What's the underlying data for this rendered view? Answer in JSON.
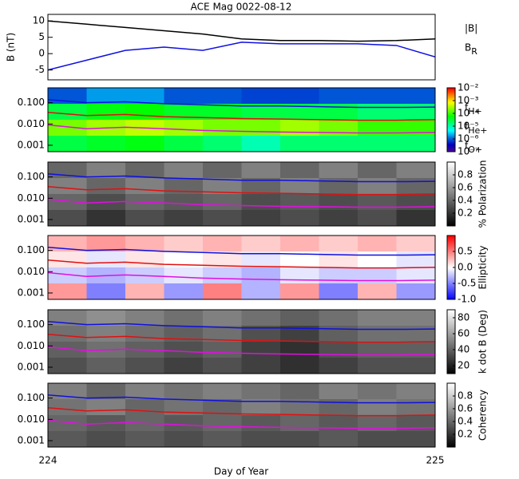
{
  "chart_data": [
    {
      "type": "line",
      "title": "ACE Mag 0022-08-12",
      "y_label": "B (nT)",
      "xlim": [
        224,
        225
      ],
      "xticks": [
        224,
        225
      ],
      "ylim": [
        -8,
        12
      ],
      "yticks": [
        -5,
        0,
        5,
        10
      ],
      "x": [
        224,
        224.1,
        224.2,
        224.3,
        224.4,
        224.5,
        224.6,
        224.7,
        224.8,
        224.9,
        225
      ],
      "series": [
        {
          "name": "|B|",
          "color": "#000000",
          "values": [
            10,
            9,
            8,
            7,
            6,
            4.5,
            4,
            4,
            3.8,
            4,
            4.5
          ]
        },
        {
          "name": "BR",
          "color": "#1010e0",
          "values": [
            -5,
            -2,
            1,
            2,
            1,
            3.5,
            3,
            3,
            3,
            2.5,
            -1
          ]
        }
      ]
    },
    {
      "type": "heatmap",
      "log_y": true,
      "colormap": "rainbow",
      "z_log": true,
      "xlim": [
        224,
        225
      ],
      "xticks": [
        224,
        225
      ],
      "ylim": [
        0.0005,
        0.5
      ],
      "yticks": [
        {
          "value": 0.001,
          "label": "0.001"
        },
        {
          "value": 0.01,
          "label": "0.010"
        },
        {
          "value": 0.1,
          "label": "0.100"
        }
      ],
      "zlim": [
        1e-07,
        0.01
      ],
      "zticks": [
        {
          "value": 0.01,
          "label": "10⁻²"
        },
        {
          "value": 0.001,
          "label": "10⁻³"
        },
        {
          "value": 0.0001,
          "label": "10⁻⁴"
        },
        {
          "value": 1e-05,
          "label": "10⁻⁵"
        },
        {
          "value": 1e-06,
          "label": "10⁻⁶"
        },
        {
          "value": 1e-07,
          "label": "10⁻⁷"
        }
      ],
      "z": [
        [
          1e-06,
          2e-06,
          2e-06,
          1e-06,
          1e-06,
          8e-07,
          8e-07,
          1e-06,
          1e-06,
          1e-06
        ],
        [
          3e-05,
          5e-05,
          6e-05,
          4e-05,
          4e-05,
          3e-05,
          3e-05,
          3e-05,
          2e-05,
          2e-05
        ],
        [
          0.0002,
          0.0003,
          0.0004,
          0.0003,
          0.0002,
          0.0002,
          0.0003,
          0.0002,
          0.0001,
          0.0001
        ],
        [
          3e-05,
          4e-05,
          5e-05,
          3e-05,
          2e-05,
          1e-05,
          2e-05,
          2e-05,
          2e-05,
          2e-05
        ]
      ],
      "x": [
        224,
        224.1,
        224.2,
        224.3,
        224.4,
        224.5,
        224.6,
        224.7,
        224.8,
        224.9,
        225
      ],
      "series": [
        {
          "name": "fH+",
          "color": "#1010e0",
          "values": [
            0.14,
            0.1,
            0.11,
            0.09,
            0.08,
            0.07,
            0.07,
            0.065,
            0.06,
            0.06,
            0.062
          ]
        },
        {
          "name": "fHe+",
          "color": "#e01010",
          "values": [
            0.035,
            0.025,
            0.028,
            0.022,
            0.02,
            0.018,
            0.017,
            0.016,
            0.015,
            0.015,
            0.016
          ]
        },
        {
          "name": "fO+",
          "color": "#e010e0",
          "values": [
            0.009,
            0.006,
            0.007,
            0.006,
            0.005,
            0.0045,
            0.0042,
            0.004,
            0.0038,
            0.0038,
            0.004
          ]
        }
      ]
    },
    {
      "type": "heatmap",
      "log_y": true,
      "colormap": "gray",
      "z_label": "% Polarization",
      "xlim": [
        224,
        225
      ],
      "xticks": [
        224,
        225
      ],
      "ylim": [
        0.0005,
        0.5
      ],
      "yticks": [
        {
          "value": 0.001,
          "label": "0.001"
        },
        {
          "value": 0.01,
          "label": "0.010"
        },
        {
          "value": 0.1,
          "label": "0.100"
        }
      ],
      "zlim": [
        0,
        1
      ],
      "zticks": [
        0.2,
        0.4,
        0.6,
        0.8
      ],
      "z": [
        [
          0.4,
          0.5,
          0.4,
          0.5,
          0.4,
          0.5,
          0.4,
          0.5,
          0.4,
          0.5
        ],
        [
          0.5,
          0.4,
          0.5,
          0.4,
          0.5,
          0.4,
          0.5,
          0.4,
          0.5,
          0.4
        ],
        [
          0.4,
          0.3,
          0.4,
          0.35,
          0.4,
          0.3,
          0.35,
          0.3,
          0.35,
          0.3
        ],
        [
          0.3,
          0.2,
          0.3,
          0.25,
          0.3,
          0.25,
          0.3,
          0.25,
          0.3,
          0.2
        ]
      ],
      "x": [
        224,
        224.1,
        224.2,
        224.3,
        224.4,
        224.5,
        224.6,
        224.7,
        224.8,
        224.9,
        225
      ],
      "series": [
        {
          "color": "#1010e0",
          "values": [
            0.14,
            0.1,
            0.11,
            0.09,
            0.08,
            0.07,
            0.07,
            0.065,
            0.06,
            0.06,
            0.062
          ]
        },
        {
          "color": "#e01010",
          "values": [
            0.035,
            0.025,
            0.028,
            0.022,
            0.02,
            0.018,
            0.017,
            0.016,
            0.015,
            0.015,
            0.016
          ]
        },
        {
          "color": "#e010e0",
          "values": [
            0.009,
            0.006,
            0.007,
            0.006,
            0.005,
            0.0045,
            0.0042,
            0.004,
            0.0038,
            0.0038,
            0.004
          ]
        }
      ]
    },
    {
      "type": "heatmap",
      "log_y": true,
      "colormap": "bwr",
      "z_label": "Ellipticity",
      "xlim": [
        224,
        225
      ],
      "xticks": [
        224,
        225
      ],
      "ylim": [
        0.0005,
        0.5
      ],
      "yticks": [
        {
          "value": 0.001,
          "label": "0.001"
        },
        {
          "value": 0.01,
          "label": "0.010"
        },
        {
          "value": 0.1,
          "label": "0.100"
        }
      ],
      "zlim": [
        -1,
        1
      ],
      "zticks": [
        {
          "value": -1,
          "label": "-1.0"
        },
        {
          "value": -0.5,
          "label": "-0.5"
        },
        {
          "value": 0,
          "label": "0.0"
        },
        {
          "value": 0.5,
          "label": "0.5"
        }
      ],
      "z": [
        [
          0.3,
          0.4,
          0.3,
          0.2,
          0.3,
          0.2,
          0.3,
          0.2,
          0.3,
          0.2
        ],
        [
          0.1,
          -0.1,
          0.1,
          0,
          0.1,
          -0.1,
          0,
          0.1,
          0,
          -0.1
        ],
        [
          -0.2,
          -0.3,
          -0.2,
          -0.1,
          -0.2,
          -0.3,
          -0.1,
          -0.2,
          -0.2,
          -0.1
        ],
        [
          0.4,
          -0.5,
          0.3,
          -0.4,
          0.5,
          -0.3,
          0.4,
          -0.5,
          0.3,
          -0.4
        ]
      ],
      "x": [
        224,
        224.1,
        224.2,
        224.3,
        224.4,
        224.5,
        224.6,
        224.7,
        224.8,
        224.9,
        225
      ],
      "series": [
        {
          "color": "#1010e0",
          "values": [
            0.14,
            0.1,
            0.11,
            0.09,
            0.08,
            0.07,
            0.07,
            0.065,
            0.06,
            0.06,
            0.062
          ]
        },
        {
          "color": "#e01010",
          "values": [
            0.035,
            0.025,
            0.028,
            0.022,
            0.02,
            0.018,
            0.017,
            0.016,
            0.015,
            0.015,
            0.016
          ]
        },
        {
          "color": "#e010e0",
          "values": [
            0.009,
            0.006,
            0.007,
            0.006,
            0.005,
            0.0045,
            0.0042,
            0.004,
            0.0038,
            0.0038,
            0.004
          ]
        }
      ]
    },
    {
      "type": "heatmap",
      "log_y": true,
      "colormap": "gray",
      "z_label": "k dot B (Deg)",
      "xlim": [
        224,
        225
      ],
      "xticks": [
        224,
        225
      ],
      "ylim": [
        0.0005,
        0.5
      ],
      "yticks": [
        {
          "value": 0.001,
          "label": "0.001"
        },
        {
          "value": 0.01,
          "label": "0.010"
        },
        {
          "value": 0.1,
          "label": "0.100"
        }
      ],
      "zlim": [
        10,
        90
      ],
      "zticks": [
        20,
        40,
        60,
        80
      ],
      "z": [
        [
          50,
          55,
          50,
          45,
          50,
          45,
          40,
          45,
          50,
          50
        ],
        [
          45,
          50,
          45,
          40,
          45,
          35,
          30,
          40,
          45,
          45
        ],
        [
          40,
          45,
          40,
          35,
          40,
          30,
          25,
          35,
          40,
          40
        ],
        [
          35,
          40,
          35,
          30,
          35,
          30,
          25,
          30,
          35,
          35
        ]
      ],
      "x": [
        224,
        224.1,
        224.2,
        224.3,
        224.4,
        224.5,
        224.6,
        224.7,
        224.8,
        224.9,
        225
      ],
      "series": [
        {
          "color": "#1010e0",
          "values": [
            0.14,
            0.1,
            0.11,
            0.09,
            0.08,
            0.07,
            0.07,
            0.065,
            0.06,
            0.06,
            0.062
          ]
        },
        {
          "color": "#e01010",
          "values": [
            0.035,
            0.025,
            0.028,
            0.022,
            0.02,
            0.018,
            0.017,
            0.016,
            0.015,
            0.015,
            0.016
          ]
        },
        {
          "color": "#e010e0",
          "values": [
            0.009,
            0.006,
            0.007,
            0.006,
            0.005,
            0.0045,
            0.0042,
            0.004,
            0.0038,
            0.0038,
            0.004
          ]
        }
      ]
    },
    {
      "type": "heatmap",
      "log_y": true,
      "colormap": "gray",
      "z_label": "Coherency",
      "x_label": "Day of Year",
      "xlim": [
        224,
        225
      ],
      "xticks": [
        224,
        225
      ],
      "ylim": [
        0.0005,
        0.5
      ],
      "yticks": [
        {
          "value": 0.001,
          "label": "0.001"
        },
        {
          "value": 0.01,
          "label": "0.010"
        },
        {
          "value": 0.1,
          "label": "0.100"
        }
      ],
      "zlim": [
        0,
        1
      ],
      "zticks": [
        0.2,
        0.4,
        0.6,
        0.8
      ],
      "z": [
        [
          0.5,
          0.4,
          0.5,
          0.45,
          0.5,
          0.45,
          0.4,
          0.5,
          0.45,
          0.5
        ],
        [
          0.45,
          0.5,
          0.4,
          0.45,
          0.4,
          0.5,
          0.45,
          0.4,
          0.5,
          0.45
        ],
        [
          0.4,
          0.35,
          0.4,
          0.35,
          0.4,
          0.35,
          0.4,
          0.35,
          0.4,
          0.35
        ],
        [
          0.35,
          0.3,
          0.35,
          0.3,
          0.35,
          0.3,
          0.3,
          0.35,
          0.3,
          0.3
        ]
      ],
      "x": [
        224,
        224.1,
        224.2,
        224.3,
        224.4,
        224.5,
        224.6,
        224.7,
        224.8,
        224.9,
        225
      ],
      "series": [
        {
          "color": "#1010e0",
          "values": [
            0.14,
            0.1,
            0.11,
            0.09,
            0.08,
            0.07,
            0.07,
            0.065,
            0.06,
            0.06,
            0.062
          ]
        },
        {
          "color": "#e01010",
          "values": [
            0.035,
            0.025,
            0.028,
            0.022,
            0.02,
            0.018,
            0.017,
            0.016,
            0.015,
            0.015,
            0.016
          ]
        },
        {
          "color": "#e010e0",
          "values": [
            0.009,
            0.006,
            0.007,
            0.006,
            0.005,
            0.0045,
            0.0042,
            0.004,
            0.0038,
            0.0038,
            0.004
          ]
        }
      ]
    }
  ]
}
